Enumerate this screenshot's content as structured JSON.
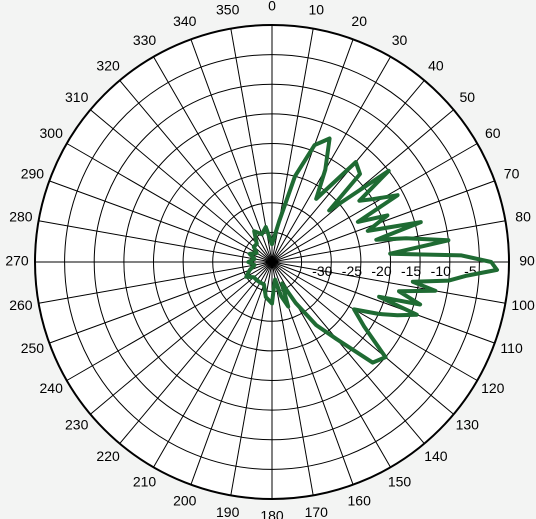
{
  "chart_data": {
    "type": "polar-line",
    "title": "",
    "angle_unit": "degrees",
    "angle_zero": "top",
    "angle_direction": "clockwise",
    "angle_tick_step": 10,
    "angle_labels": [
      "0",
      "10",
      "20",
      "30",
      "40",
      "50",
      "60",
      "70",
      "80",
      "90",
      "100",
      "110",
      "120",
      "130",
      "140",
      "150",
      "160",
      "170",
      "180",
      "190",
      "200",
      "210",
      "220",
      "230",
      "240",
      "250",
      "260",
      "270",
      "280",
      "290",
      "300",
      "310",
      "320",
      "330",
      "340",
      "350"
    ],
    "radial_unit": "dB",
    "radial_range": [
      -40,
      0
    ],
    "radial_ring_step": 5,
    "radial_labels": [
      "-30",
      "-25",
      "-20",
      "-15",
      "-10",
      "-5"
    ],
    "grid": true,
    "colors": {
      "pattern": "#1f6b33",
      "grid": "#000000",
      "background": "#ffffff"
    },
    "series": [
      {
        "angles_deg": [
          0,
          10,
          15,
          20,
          25,
          30,
          35,
          40,
          45,
          48,
          52,
          55,
          58,
          62,
          65,
          68,
          72,
          75,
          78,
          80,
          83,
          86,
          88,
          90,
          92,
          94,
          96,
          98,
          100,
          103,
          106,
          108,
          110,
          113,
          116,
          120,
          125,
          130,
          135,
          140,
          145,
          150,
          155,
          160,
          165,
          170,
          175,
          180,
          190,
          200,
          210,
          220,
          230,
          240,
          250,
          260,
          270,
          280,
          290,
          300,
          310,
          320,
          330,
          340,
          350,
          360
        ],
        "values_db": [
          -37,
          -33,
          -25,
          -19,
          -17,
          -22,
          -27,
          -18,
          -19,
          -27,
          -15,
          -22,
          -20,
          -16,
          -24,
          -19,
          -23,
          -14,
          -22,
          -17,
          -10,
          -20,
          -8,
          -3,
          -2,
          -7,
          -10,
          -16,
          -12,
          -18,
          -14,
          -21,
          -14,
          -17,
          -20,
          -24,
          -21,
          -15,
          -16,
          -23,
          -27,
          -32,
          -36,
          -32,
          -34,
          -37,
          -36,
          -33,
          -34,
          -36,
          -36,
          -36,
          -36,
          -35,
          -36,
          -37,
          -36,
          -37,
          -36,
          -37,
          -36,
          -36,
          -34,
          -35,
          -34,
          -37
        ]
      }
    ]
  }
}
